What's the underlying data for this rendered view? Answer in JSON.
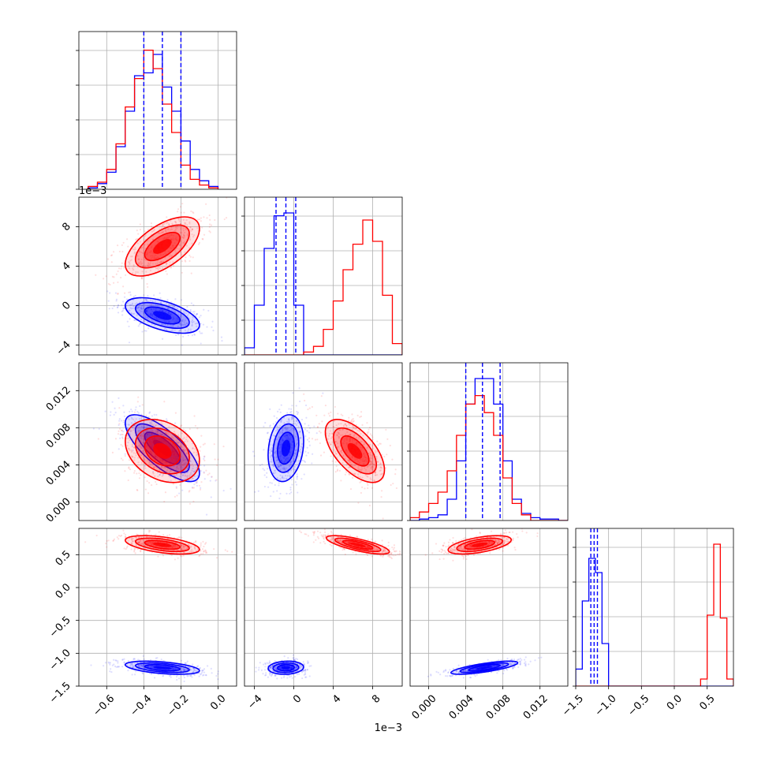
{
  "chart_data": {
    "type": "corner",
    "colors": {
      "series_a": "#0000ff",
      "series_b": "#ff0000"
    },
    "grid": true,
    "axes": [
      {
        "lim": [
          -0.75,
          0.1
        ],
        "ticks": [
          -0.6,
          -0.4,
          -0.2,
          0.0
        ],
        "tick_labels": [
          "−0.6",
          "−0.4",
          "−0.2",
          "0.0"
        ],
        "scale_text": ""
      },
      {
        "lim": [
          -5,
          11
        ],
        "ticks": [
          -4,
          0,
          4,
          8
        ],
        "tick_labels": [
          "−4",
          "0",
          "4",
          "8"
        ],
        "scale_text": "1e−3",
        "units": "1e-3"
      },
      {
        "lim": [
          -0.002,
          0.015
        ],
        "ticks": [
          0.0,
          0.004,
          0.008,
          0.012
        ],
        "tick_labels": [
          "0.000",
          "0.004",
          "0.008",
          "0.012"
        ],
        "scale_text": ""
      },
      {
        "lim": [
          -1.5,
          0.9
        ],
        "ticks": [
          -1.5,
          -1.0,
          -0.5,
          0.0,
          0.5
        ],
        "tick_labels": [
          "−1.5",
          "−1.0",
          "−0.5",
          "0.0",
          "0.5"
        ],
        "scale_text": ""
      }
    ],
    "marginals": [
      {
        "series_a": {
          "edges": [
            -0.7,
            -0.65,
            -0.6,
            -0.55,
            -0.5,
            -0.45,
            -0.4,
            -0.35,
            -0.3,
            -0.25,
            -0.2,
            -0.15,
            -0.1,
            -0.05,
            0.0
          ],
          "counts": [
            0.01,
            0.04,
            0.12,
            0.3,
            0.55,
            0.8,
            0.82,
            0.95,
            0.72,
            0.55,
            0.34,
            0.14,
            0.06,
            0.02
          ]
        },
        "series_b": {
          "edges": [
            -0.7,
            -0.65,
            -0.6,
            -0.55,
            -0.5,
            -0.45,
            -0.4,
            -0.35,
            -0.3,
            -0.25,
            -0.2,
            -0.15,
            -0.1,
            -0.05,
            0.0
          ],
          "counts": [
            0.02,
            0.05,
            0.14,
            0.32,
            0.58,
            0.78,
            0.98,
            0.85,
            0.6,
            0.4,
            0.17,
            0.07,
            0.03,
            0.01
          ]
        },
        "quantiles": [
          -0.4,
          -0.3,
          -0.2
        ]
      },
      {
        "series_a": {
          "edges": [
            -5,
            -4,
            -3,
            -2,
            -1,
            0,
            1,
            2,
            3,
            4,
            5,
            6,
            7,
            8,
            9,
            10,
            11
          ],
          "counts": [
            0.05,
            0.35,
            0.75,
            0.98,
            1.0,
            0.35,
            0,
            0,
            0,
            0,
            0,
            0,
            0,
            0,
            0,
            0
          ]
        },
        "series_b": {
          "edges": [
            -5,
            -4,
            -3,
            -2,
            -1,
            0,
            1,
            2,
            3,
            4,
            5,
            6,
            7,
            8,
            9,
            10,
            11
          ],
          "counts": [
            0,
            0,
            0,
            0,
            0,
            0,
            0.02,
            0.06,
            0.18,
            0.38,
            0.6,
            0.78,
            0.95,
            0.8,
            0.42,
            0.08
          ]
        },
        "quantiles": [
          -1.8,
          -0.8,
          0.2
        ]
      },
      {
        "series_a": {
          "edges": [
            -0.002,
            -0.001,
            0,
            0.001,
            0.002,
            0.003,
            0.004,
            0.005,
            0.006,
            0.007,
            0.008,
            0.009,
            0.01,
            0.011,
            0.012,
            0.013,
            0.014,
            0.015
          ],
          "counts": [
            0,
            0.01,
            0.02,
            0.04,
            0.15,
            0.42,
            0.82,
            1.0,
            1.0,
            0.82,
            0.42,
            0.15,
            0.05,
            0.02,
            0.01,
            0.01,
            0
          ]
        },
        "series_b": {
          "edges": [
            -0.002,
            -0.001,
            0,
            0.001,
            0.002,
            0.003,
            0.004,
            0.005,
            0.006,
            0.007,
            0.008,
            0.009,
            0.01,
            0.011,
            0.012,
            0.013,
            0.014,
            0.015
          ],
          "counts": [
            0.02,
            0.06,
            0.12,
            0.2,
            0.35,
            0.6,
            0.82,
            0.88,
            0.76,
            0.6,
            0.3,
            0.12,
            0.04,
            0,
            0,
            0,
            0
          ]
        },
        "quantiles": [
          0.004,
          0.0058,
          0.0077
        ]
      },
      {
        "series_a": {
          "edges": [
            -1.5,
            -1.4,
            -1.3,
            -1.2,
            -1.1,
            -1.0,
            -0.9,
            -0.8,
            -0.7,
            -0.6,
            -0.5,
            -0.4,
            -0.3,
            -0.2,
            -0.1,
            0,
            0.1,
            0.2,
            0.3,
            0.4,
            0.5,
            0.6,
            0.7,
            0.8,
            0.9
          ],
          "counts": [
            0.12,
            0.6,
            0.9,
            0.8,
            0.3,
            0,
            0,
            0,
            0,
            0,
            0,
            0,
            0,
            0,
            0,
            0,
            0,
            0,
            0,
            0,
            0,
            0,
            0,
            0
          ]
        },
        "series_b": {
          "edges": [
            -1.5,
            -1.4,
            -1.3,
            -1.2,
            -1.1,
            -1.0,
            -0.9,
            -0.8,
            -0.7,
            -0.6,
            -0.5,
            -0.4,
            -0.3,
            -0.2,
            -0.1,
            0,
            0.1,
            0.2,
            0.3,
            0.4,
            0.5,
            0.6,
            0.7,
            0.8,
            0.9
          ],
          "counts": [
            0,
            0,
            0,
            0,
            0,
            0,
            0,
            0,
            0,
            0,
            0,
            0,
            0,
            0,
            0,
            0,
            0,
            0,
            0,
            0.05,
            0.5,
            1.0,
            0.48,
            0.05
          ]
        },
        "quantiles": [
          -1.27,
          -1.22,
          -1.17
        ]
      }
    ],
    "joint_distributions": [
      {
        "axes": [
          0,
          1
        ],
        "series_a": {
          "center": [
            -0.3,
            -1.0
          ],
          "sd": [
            0.1,
            0.9
          ],
          "rho": -0.55
        },
        "series_b": {
          "center": [
            -0.3,
            6.0
          ],
          "sd": [
            0.1,
            1.5
          ],
          "rho": 0.6
        }
      },
      {
        "axes": [
          0,
          2
        ],
        "series_a": {
          "center": [
            -0.3,
            0.0058
          ],
          "sd": [
            0.1,
            0.0018
          ],
          "rho": -0.75
        },
        "series_b": {
          "center": [
            -0.3,
            0.0055
          ],
          "sd": [
            0.1,
            0.0017
          ],
          "rho": -0.3
        }
      },
      {
        "axes": [
          1,
          2
        ],
        "series_a": {
          "center": [
            -0.8,
            0.0058
          ],
          "sd": [
            0.9,
            0.0018
          ],
          "rho": 0.2
        },
        "series_b": {
          "center": [
            6.2,
            0.0055
          ],
          "sd": [
            1.5,
            0.0017
          ],
          "rho": -0.6
        }
      },
      {
        "axes": [
          0,
          3
        ],
        "series_a": {
          "center": [
            -0.3,
            -1.22
          ],
          "sd": [
            0.1,
            0.05
          ],
          "rho": -0.45
        },
        "series_b": {
          "center": [
            -0.3,
            0.65
          ],
          "sd": [
            0.1,
            0.07
          ],
          "rho": -0.5
        }
      },
      {
        "axes": [
          1,
          3
        ],
        "series_a": {
          "center": [
            -0.8,
            -1.22
          ],
          "sd": [
            0.9,
            0.05
          ],
          "rho": 0.1
        },
        "series_b": {
          "center": [
            6.5,
            0.65
          ],
          "sd": [
            1.6,
            0.07
          ],
          "rho": -0.75
        }
      },
      {
        "axes": [
          2,
          3
        ],
        "series_a": {
          "center": [
            0.006,
            -1.22
          ],
          "sd": [
            0.0018,
            0.05
          ],
          "rho": 0.75
        },
        "series_b": {
          "center": [
            0.0055,
            0.65
          ],
          "sd": [
            0.0017,
            0.07
          ],
          "rho": 0.55
        }
      }
    ]
  }
}
